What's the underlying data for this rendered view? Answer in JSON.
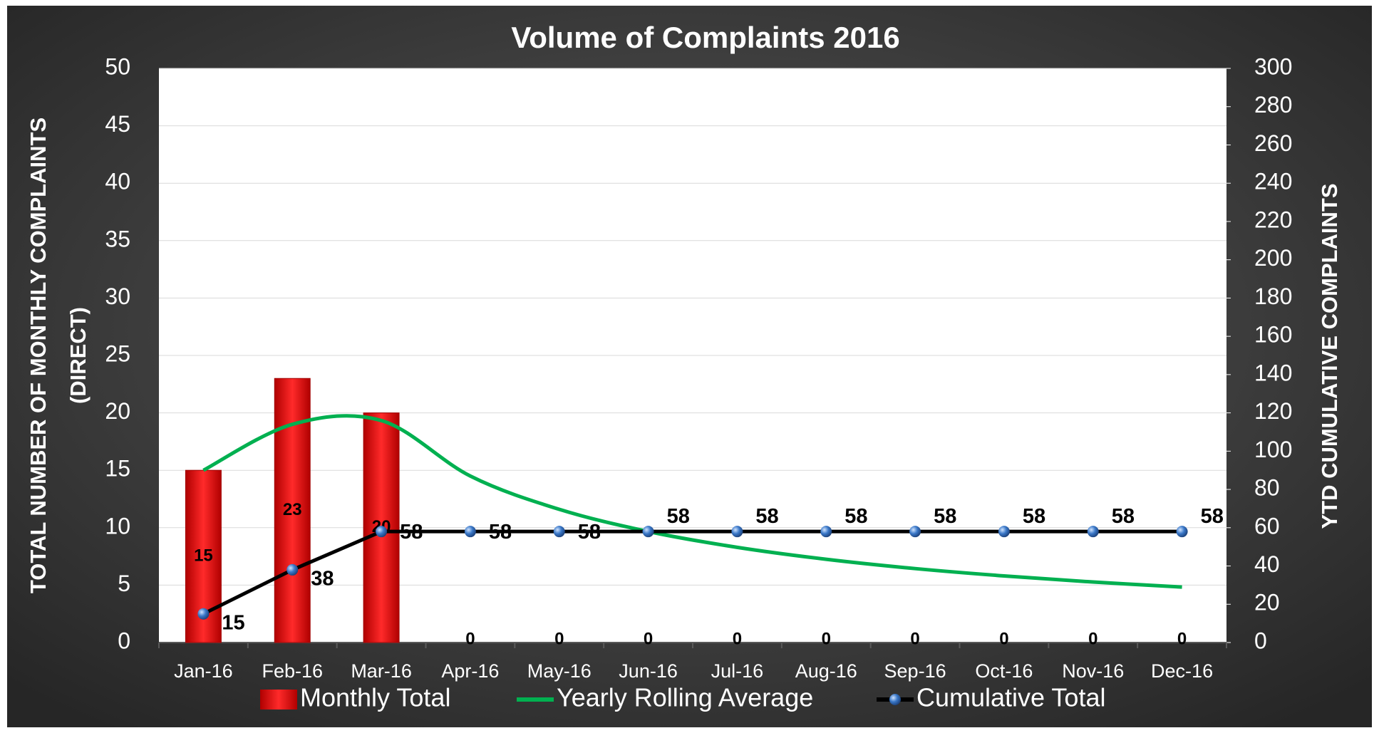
{
  "chart_data": {
    "type": "bar_line_combo",
    "title": "Volume of Complaints 2016",
    "y_label_lines": [
      "TOTAL NUMBER OF MONTHLY COMPLAINTS",
      "(DIRECT)"
    ],
    "y2_label": "YTD CUMULATIVE  COMPLAINTS",
    "categories": [
      "Jan-16",
      "Feb-16",
      "Mar-16",
      "Apr-16",
      "May-16",
      "Jun-16",
      "Jul-16",
      "Aug-16",
      "Sep-16",
      "Oct-16",
      "Nov-16",
      "Dec-16"
    ],
    "series": [
      {
        "name": "Monthly Total",
        "type": "bar",
        "color": "#e60000",
        "axis": "y",
        "values": [
          15,
          23,
          20,
          0,
          0,
          0,
          0,
          0,
          0,
          0,
          0,
          0
        ],
        "show_labels": true
      },
      {
        "name": "Yearly Rolling Average",
        "type": "line",
        "color": "#00b050",
        "axis": "y",
        "smooth": true,
        "values": [
          15,
          19,
          19.33,
          14.5,
          11.6,
          9.67,
          8.29,
          7.25,
          6.44,
          5.8,
          5.27,
          4.83
        ],
        "show_labels": false
      },
      {
        "name": "Cumulative Total",
        "type": "line",
        "color": "#000000",
        "marker_color": "#3a78c8",
        "axis": "y2",
        "values": [
          15,
          38,
          58,
          58,
          58,
          58,
          58,
          58,
          58,
          58,
          58,
          58
        ],
        "show_labels": true
      }
    ],
    "ylim": [
      0,
      50
    ],
    "yticks": [
      0,
      5,
      10,
      15,
      20,
      25,
      30,
      35,
      40,
      45,
      50
    ],
    "y2lim": [
      0,
      300
    ],
    "y2ticks": [
      0,
      20,
      40,
      60,
      80,
      100,
      120,
      140,
      160,
      180,
      200,
      220,
      240,
      260,
      280,
      300
    ],
    "grid": true,
    "legend": "bottom"
  }
}
